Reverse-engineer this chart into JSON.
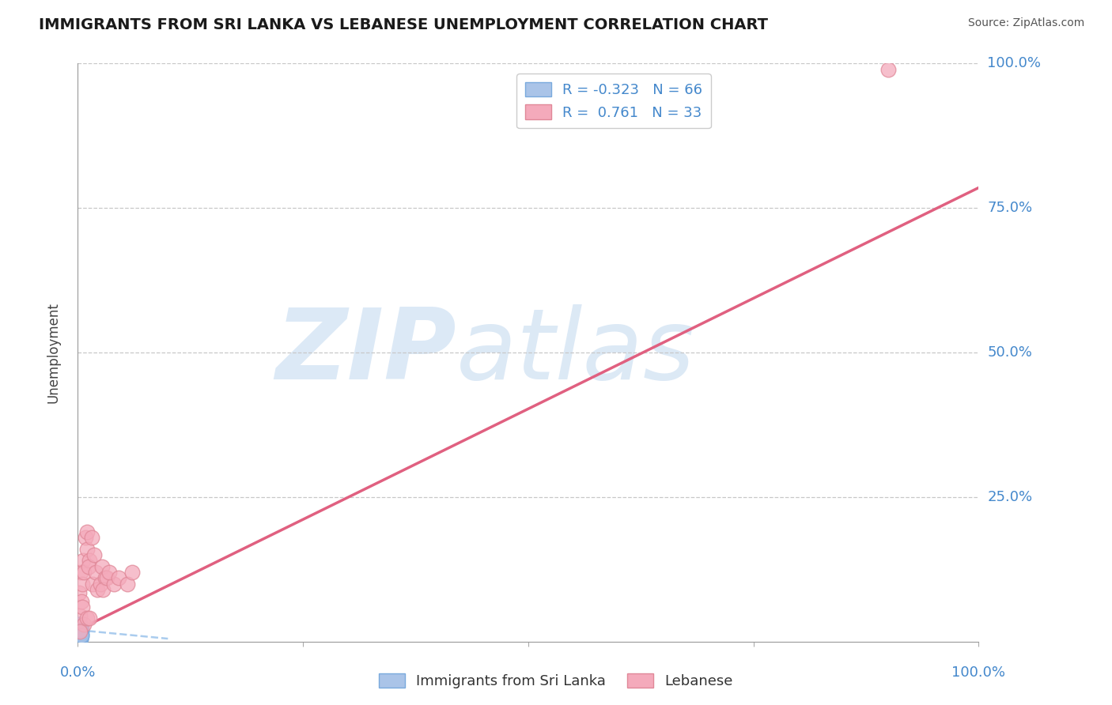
{
  "title": "IMMIGRANTS FROM SRI LANKA VS LEBANESE UNEMPLOYMENT CORRELATION CHART",
  "source_text": "Source: ZipAtlas.com",
  "ylabel": "Unemployment",
  "xlim": [
    0,
    1.0
  ],
  "ylim": [
    0,
    1.0
  ],
  "ytick_positions": [
    0.25,
    0.5,
    0.75,
    1.0
  ],
  "ytick_labels": [
    "25.0%",
    "50.0%",
    "75.0%",
    "100.0%"
  ],
  "grid_color": "#c8c8c8",
  "background_color": "#ffffff",
  "sri_lanka_color": "#aac4e8",
  "sri_lanka_edge": "#7aaadd",
  "lebanese_color": "#f4aabb",
  "lebanese_edge": "#e08898",
  "sri_lanka_trend_color": "#aaccee",
  "lebanese_trend_color": "#e06080",
  "r_sri_lanka": -0.323,
  "n_sri_lanka": 66,
  "r_lebanese": 0.761,
  "n_lebanese": 33,
  "watermark_zip": "ZIP",
  "watermark_atlas": "atlas",
  "legend_label_1": "Immigrants from Sri Lanka",
  "legend_label_2": "Lebanese",
  "title_color": "#1a1a1a",
  "axis_label_color": "#4488cc",
  "legend_r_color": "#4488cc",
  "sri_lanka_points_x": [
    0.001,
    0.002,
    0.001,
    0.003,
    0.002,
    0.001,
    0.004,
    0.002,
    0.003,
    0.001,
    0.001,
    0.002,
    0.003,
    0.001,
    0.003,
    0.002,
    0.004,
    0.001,
    0.002,
    0.003,
    0.002,
    0.001,
    0.002,
    0.001,
    0.003,
    0.003,
    0.002,
    0.001,
    0.003,
    0.002,
    0.004,
    0.001,
    0.002,
    0.003,
    0.001,
    0.002,
    0.003,
    0.003,
    0.001,
    0.002,
    0.003,
    0.001,
    0.001,
    0.002,
    0.003,
    0.003,
    0.001,
    0.002,
    0.004,
    0.001,
    0.002,
    0.003,
    0.003,
    0.001,
    0.002,
    0.003,
    0.001,
    0.002,
    0.001,
    0.003,
    0.003,
    0.002,
    0.001,
    0.003,
    0.002,
    0.004
  ],
  "sri_lanka_points_y": [
    0.01,
    0.02,
    0.005,
    0.015,
    0.01,
    0.025,
    0.015,
    0.01,
    0.02,
    0.005,
    0.015,
    0.025,
    0.01,
    0.02,
    0.015,
    0.005,
    0.025,
    0.015,
    0.02,
    0.01,
    0.015,
    0.025,
    0.02,
    0.01,
    0.015,
    0.005,
    0.02,
    0.015,
    0.025,
    0.01,
    0.02,
    0.03,
    0.015,
    0.01,
    0.025,
    0.02,
    0.015,
    0.01,
    0.03,
    0.02,
    0.015,
    0.025,
    0.01,
    0.02,
    0.015,
    0.005,
    0.025,
    0.015,
    0.01,
    0.02,
    0.03,
    0.015,
    0.025,
    0.02,
    0.01,
    0.015,
    0.025,
    0.02,
    0.01,
    0.015,
    0.01,
    0.02,
    0.025,
    0.015,
    0.02,
    0.01
  ],
  "lebanese_points_x": [
    0.001,
    0.003,
    0.005,
    0.006,
    0.008,
    0.007,
    0.01,
    0.013,
    0.01,
    0.012,
    0.016,
    0.018,
    0.015,
    0.022,
    0.02,
    0.025,
    0.027,
    0.03,
    0.028,
    0.032,
    0.04,
    0.035,
    0.045,
    0.055,
    0.06,
    0.002,
    0.004,
    0.005,
    0.007,
    0.01,
    0.013,
    0.002,
    0.9
  ],
  "lebanese_points_y": [
    0.085,
    0.12,
    0.1,
    0.14,
    0.18,
    0.12,
    0.16,
    0.14,
    0.19,
    0.13,
    0.1,
    0.15,
    0.18,
    0.09,
    0.12,
    0.1,
    0.13,
    0.11,
    0.09,
    0.11,
    0.1,
    0.12,
    0.11,
    0.1,
    0.12,
    0.045,
    0.07,
    0.06,
    0.03,
    0.04,
    0.04,
    0.018,
    0.99
  ],
  "leb_trend_x0": 0.0,
  "leb_trend_y0": 0.02,
  "leb_trend_x1": 1.0,
  "leb_trend_y1": 0.785,
  "sl_trend_x0": 0.0,
  "sl_trend_y0": 0.02,
  "sl_trend_x1": 0.1,
  "sl_trend_y1": 0.005
}
